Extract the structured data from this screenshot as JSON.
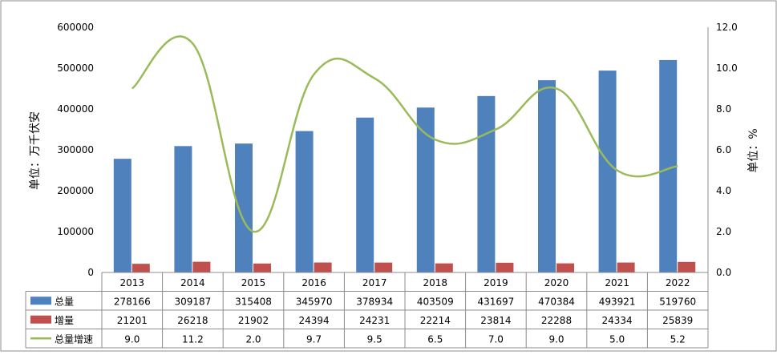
{
  "chart_data": {
    "type": "bar",
    "categories": [
      "2013",
      "2014",
      "2015",
      "2016",
      "2017",
      "2018",
      "2019",
      "2020",
      "2021",
      "2022"
    ],
    "series": [
      {
        "name": "总量",
        "type": "bar",
        "axis": "left",
        "color": "#4F81BD",
        "values": [
          278166,
          309187,
          315408,
          345970,
          378934,
          403509,
          431697,
          470384,
          493921,
          519760
        ]
      },
      {
        "name": "增量",
        "type": "bar",
        "axis": "left",
        "color": "#C0504D",
        "values": [
          21201,
          26218,
          21902,
          24394,
          24231,
          22214,
          23814,
          22288,
          24334,
          25839
        ]
      },
      {
        "name": "总量增速",
        "type": "line",
        "axis": "right",
        "color": "#9BBB59",
        "smooth": true,
        "values": [
          9.0,
          11.2,
          2.0,
          9.7,
          9.5,
          6.5,
          7.0,
          9.0,
          5.0,
          5.2
        ]
      }
    ],
    "ylabel": "单位：万千伏安",
    "y2label": "单位：%",
    "ylim": [
      0,
      600000
    ],
    "y_ticks": [
      "600000",
      "500000",
      "400000",
      "300000",
      "200000",
      "100000",
      "0"
    ],
    "y2lim": [
      0,
      12
    ],
    "y2_ticks": [
      "12.0",
      "10.0",
      "8.0",
      "6.0",
      "4.0",
      "2.0",
      "0.0"
    ],
    "data_table": true,
    "table_rows": [
      {
        "label": "总量",
        "cells": [
          "278166",
          "309187",
          "315408",
          "345970",
          "378934",
          "403509",
          "431697",
          "470384",
          "493921",
          "519760"
        ]
      },
      {
        "label": "增量",
        "cells": [
          "21201",
          "26218",
          "21902",
          "24394",
          "24231",
          "22214",
          "23814",
          "22288",
          "24334",
          "25839"
        ]
      },
      {
        "label": "总量增速",
        "cells": [
          "9.0",
          "11.2",
          "2.0",
          "9.7",
          "9.5",
          "6.5",
          "7.0",
          "9.0",
          "5.0",
          "5.2"
        ]
      }
    ],
    "grid": false
  }
}
